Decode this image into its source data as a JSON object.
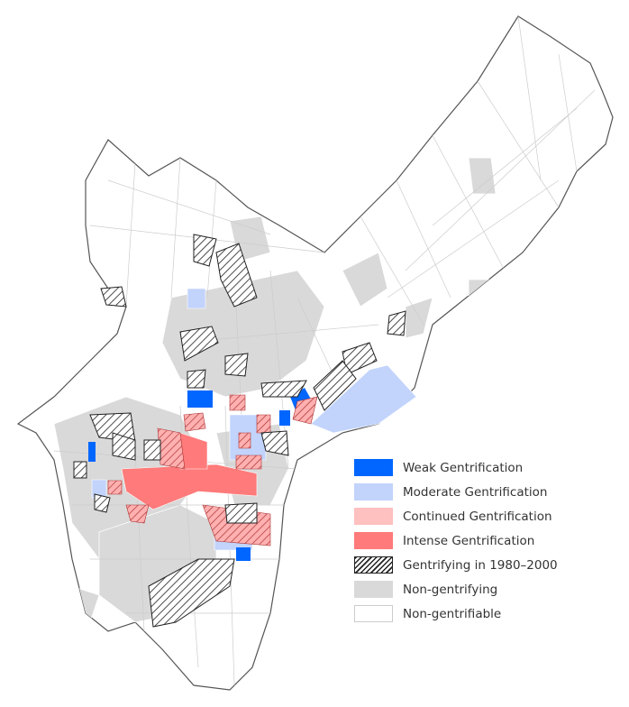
{
  "legend": [
    {
      "label": "Weak Gentrification",
      "color": "#0066ff",
      "style": "solid"
    },
    {
      "label": "Moderate Gentrification",
      "color": "#c2d4fc",
      "style": "solid"
    },
    {
      "label": "Continued Gentrification",
      "color": "#ffc0c0",
      "style": "solid"
    },
    {
      "label": "Intense Gentrification",
      "color": "#ff7a7a",
      "style": "solid"
    },
    {
      "label": "Gentrifying in 1980–2000",
      "color": "#222222",
      "style": "hatched"
    },
    {
      "label": "Non-gentrifying",
      "color": "#d9d9d9",
      "style": "solid"
    },
    {
      "label": "Non-gentrifiable",
      "color": "#ffffff",
      "style": "outline"
    }
  ]
}
